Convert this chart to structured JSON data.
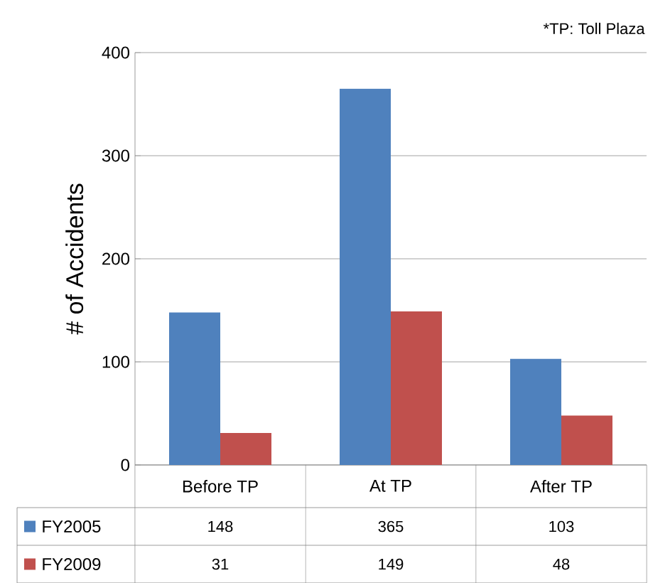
{
  "chart_data": {
    "type": "bar",
    "ylabel": "# of Accidents",
    "annotations": [
      "*TP: Toll Plaza"
    ],
    "categories": [
      "Before TP",
      "At TP",
      "After TP"
    ],
    "series": [
      {
        "name": "FY2005",
        "color": "#4f81bd",
        "values": [
          148,
          365,
          103
        ]
      },
      {
        "name": "FY2009",
        "color": "#c0504d",
        "values": [
          31,
          149,
          48
        ]
      }
    ],
    "ylim": [
      0,
      400
    ],
    "yticks": [
      0,
      100,
      200,
      300,
      400
    ],
    "grid": "y",
    "legend": "bottom",
    "data_labels": true
  }
}
